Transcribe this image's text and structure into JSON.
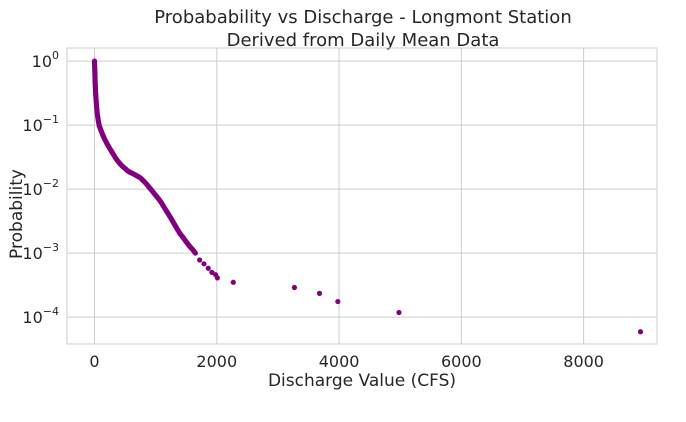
{
  "chart_data": {
    "type": "scatter",
    "title": "Probabability vs Discharge - Longmont Station",
    "subtitle": "Derived from Daily Mean Data",
    "xlabel": "Discharge Value (CFS)",
    "ylabel": "Probability",
    "xlim": [
      -450,
      9200
    ],
    "ylim": [
      3.8e-05,
      1.6
    ],
    "yscale": "log",
    "grid": true,
    "legend": "none",
    "marker_color": "#800080",
    "x_ticks": [
      "0",
      "2000",
      "4000",
      "6000",
      "8000"
    ],
    "x_tick_values": [
      0,
      2000,
      4000,
      6000,
      8000
    ],
    "y_ticks": [
      {
        "base": "10",
        "exp": "0",
        "value": 1
      },
      {
        "base": "10",
        "exp": "−1",
        "value": 0.1
      },
      {
        "base": "10",
        "exp": "−2",
        "value": 0.01
      },
      {
        "base": "10",
        "exp": "−3",
        "value": 0.001
      },
      {
        "base": "10",
        "exp": "−4",
        "value": 0.0001
      }
    ],
    "curve_points": [
      [
        0,
        1.0
      ],
      [
        2,
        0.85
      ],
      [
        5,
        0.7
      ],
      [
        8,
        0.55
      ],
      [
        12,
        0.42
      ],
      [
        18,
        0.32
      ],
      [
        25,
        0.25
      ],
      [
        35,
        0.19
      ],
      [
        45,
        0.15
      ],
      [
        60,
        0.12
      ],
      [
        75,
        0.1
      ],
      [
        100,
        0.085
      ],
      [
        130,
        0.072
      ],
      [
        160,
        0.062
      ],
      [
        200,
        0.052
      ],
      [
        250,
        0.043
      ],
      [
        300,
        0.036
      ],
      [
        350,
        0.03
      ],
      [
        400,
        0.026
      ],
      [
        450,
        0.023
      ],
      [
        500,
        0.021
      ],
      [
        550,
        0.019
      ],
      [
        600,
        0.018
      ],
      [
        650,
        0.017
      ],
      [
        700,
        0.016
      ],
      [
        750,
        0.015
      ],
      [
        800,
        0.0135
      ],
      [
        850,
        0.012
      ],
      [
        900,
        0.0105
      ],
      [
        950,
        0.0092
      ],
      [
        1000,
        0.008
      ],
      [
        1050,
        0.007
      ],
      [
        1100,
        0.006
      ],
      [
        1150,
        0.005
      ],
      [
        1200,
        0.0042
      ],
      [
        1250,
        0.0035
      ],
      [
        1300,
        0.0029
      ],
      [
        1350,
        0.0024
      ],
      [
        1400,
        0.002
      ],
      [
        1450,
        0.00175
      ],
      [
        1500,
        0.0015
      ],
      [
        1550,
        0.0013
      ],
      [
        1600,
        0.00115
      ],
      [
        1650,
        0.001
      ]
    ],
    "outliers": [
      [
        1720,
        0.00078
      ],
      [
        1790,
        0.00068
      ],
      [
        1860,
        0.00058
      ],
      [
        1920,
        0.0005
      ],
      [
        1980,
        0.00046
      ],
      [
        2010,
        0.00041
      ],
      [
        2270,
        0.00035
      ],
      [
        3270,
        0.00029
      ],
      [
        3680,
        0.000235
      ],
      [
        3980,
        0.000175
      ],
      [
        4980,
        0.000118
      ],
      [
        8930,
        5.9e-05
      ]
    ]
  }
}
